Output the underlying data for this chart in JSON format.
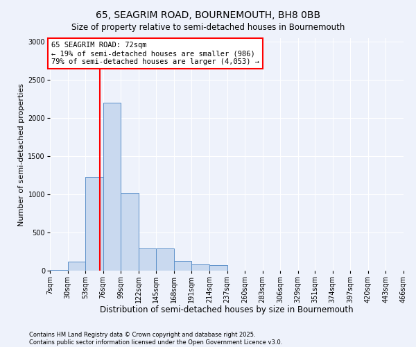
{
  "title": "65, SEAGRIM ROAD, BOURNEMOUTH, BH8 0BB",
  "subtitle": "Size of property relative to semi-detached houses in Bournemouth",
  "xlabel": "Distribution of semi-detached houses by size in Bournemouth",
  "ylabel": "Number of semi-detached properties",
  "bin_labels": [
    "7sqm",
    "30sqm",
    "53sqm",
    "76sqm",
    "99sqm",
    "122sqm",
    "145sqm",
    "168sqm",
    "191sqm",
    "214sqm",
    "237sqm",
    "260sqm",
    "283sqm",
    "306sqm",
    "329sqm",
    "351sqm",
    "374sqm",
    "397sqm",
    "420sqm",
    "443sqm",
    "466sqm"
  ],
  "bin_edges": [
    7,
    30,
    53,
    76,
    99,
    122,
    145,
    168,
    191,
    214,
    237,
    260,
    283,
    306,
    329,
    351,
    374,
    397,
    420,
    443,
    466
  ],
  "bar_heights": [
    5,
    120,
    1230,
    2200,
    1020,
    290,
    290,
    130,
    80,
    70,
    0,
    0,
    0,
    0,
    0,
    0,
    0,
    0,
    0,
    0
  ],
  "bar_color": "#c9d9ef",
  "bar_edge_color": "#5a8fc9",
  "property_value": 72,
  "vline_color": "red",
  "annotation_text": "65 SEAGRIM ROAD: 72sqm\n← 19% of semi-detached houses are smaller (986)\n79% of semi-detached houses are larger (4,053) →",
  "annotation_box_color": "white",
  "annotation_border_color": "red",
  "ylim": [
    0,
    3050
  ],
  "yticks": [
    0,
    500,
    1000,
    1500,
    2000,
    2500,
    3000
  ],
  "footer_text": "Contains HM Land Registry data © Crown copyright and database right 2025.\nContains public sector information licensed under the Open Government Licence v3.0.",
  "bg_color": "#eef2fb",
  "grid_color": "white",
  "title_fontsize": 10,
  "xlabel_fontsize": 8.5,
  "ylabel_fontsize": 8,
  "tick_fontsize": 7,
  "annotation_fontsize": 7.5
}
